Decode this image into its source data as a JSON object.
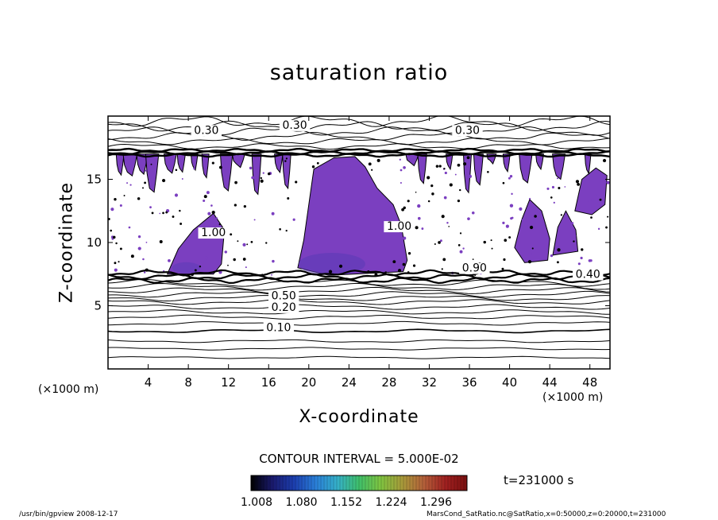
{
  "chart_data": {
    "type": "contour",
    "title": "saturation ratio",
    "xlabel": "X-coordinate",
    "ylabel": "Z-coordinate",
    "x_unit": "(×1000 m)",
    "y_unit": "(×1000 m)",
    "xlim": [
      0,
      50
    ],
    "ylim": [
      0,
      20
    ],
    "x_ticks": [
      4,
      8,
      12,
      16,
      20,
      24,
      28,
      32,
      36,
      40,
      44,
      48
    ],
    "y_ticks": [
      5,
      10,
      15
    ],
    "contour_interval_text": "CONTOUR INTERVAL = 5.000E-02",
    "contour_labels": [
      {
        "text": "0.30",
        "x": 9.8,
        "z": 18.6
      },
      {
        "text": "0.30",
        "x": 18.6,
        "z": 19.0
      },
      {
        "text": "0.30",
        "x": 35.8,
        "z": 18.6
      },
      {
        "text": "1.00",
        "x": 29.0,
        "z": 11.0
      },
      {
        "text": "1.00",
        "x": 10.5,
        "z": 10.5
      },
      {
        "text": "0.50",
        "x": 17.5,
        "z": 5.5
      },
      {
        "text": "0.20",
        "x": 17.5,
        "z": 4.6
      },
      {
        "text": "0.10",
        "x": 17.0,
        "z": 3.0
      },
      {
        "text": "0.90",
        "x": 36.5,
        "z": 7.7
      },
      {
        "text": "0.40",
        "x": 47.8,
        "z": 7.2
      }
    ],
    "colorbar": {
      "ticks": [
        "1.008",
        "1.080",
        "1.152",
        "1.224",
        "1.296"
      ],
      "colors": [
        "#000000",
        "#1a1a6e",
        "#1c3fb0",
        "#2a7fd8",
        "#35b0c8",
        "#3fbf6a",
        "#7fc440",
        "#a89a3a",
        "#b4603a",
        "#a02020",
        "#7a1010"
      ]
    },
    "fill_color": "#7b3fc0",
    "time_label": "t=231000 s"
  },
  "footer": {
    "left": "/usr/bin/gpview   2008-12-17",
    "right": "MarsCond_SatRatio.nc@SatRatio,x=0:50000,z=0:20000,t=231000"
  }
}
